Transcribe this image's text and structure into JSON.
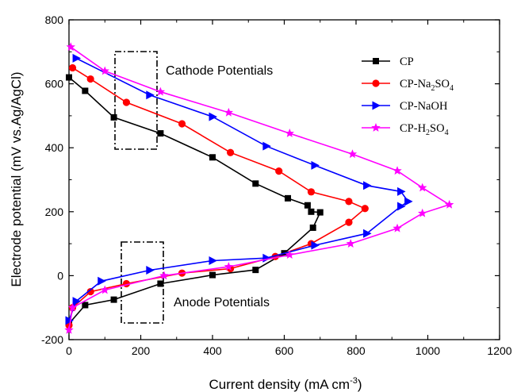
{
  "chart_data": {
    "type": "line",
    "xlabel": "Current density (mA cm",
    "xlabel_sup": "-3",
    "xlabel_end": ")",
    "ylabel": "Electrode potential (mV vs.Ag/AgCl)",
    "xlim": [
      0,
      1200
    ],
    "ylim": [
      -200,
      800
    ],
    "x_ticks": [
      "0",
      "200",
      "400",
      "600",
      "800",
      "1000",
      "1200"
    ],
    "y_ticks": [
      "-200",
      "0",
      "200",
      "400",
      "600",
      "800"
    ],
    "annotations": [
      "Cathode Potentials",
      "Anode Potentials"
    ],
    "legend_position": "top-right",
    "series": [
      {
        "name": "CP",
        "color": "#000000",
        "marker": "square",
        "x": [
          0,
          45,
          125,
          255,
          400,
          520,
          610,
          665,
          675,
          700,
          680,
          600,
          520,
          400,
          255,
          125,
          45,
          0
        ],
        "y": [
          620,
          578,
          495,
          445,
          370,
          288,
          242,
          220,
          200,
          198,
          150,
          70,
          18,
          2,
          -25,
          -75,
          -92,
          -150
        ]
      },
      {
        "name": "CP-Na",
        "name_sub": "2",
        "name_end": "SO",
        "name_sub2": "4",
        "color": "#ff0000",
        "marker": "circle",
        "x": [
          10,
          60,
          160,
          315,
          450,
          585,
          675,
          780,
          825,
          780,
          675,
          575,
          450,
          315,
          160,
          60,
          10,
          0
        ],
        "y": [
          650,
          615,
          542,
          475,
          385,
          327,
          262,
          232,
          210,
          167,
          100,
          60,
          22,
          8,
          -25,
          -50,
          -100,
          -155
        ]
      },
      {
        "name": "CP-NaOH",
        "color": "#0000ff",
        "marker": "triangle-right",
        "x": [
          20,
          225,
          400,
          550,
          685,
          830,
          925,
          945,
          925,
          830,
          685,
          550,
          400,
          225,
          90,
          20,
          0
        ],
        "y": [
          680,
          565,
          497,
          405,
          345,
          282,
          263,
          232,
          217,
          132,
          95,
          55,
          47,
          17,
          -17,
          -80,
          -140
        ]
      },
      {
        "name": "CP-H",
        "name_sub": "2",
        "name_end": "SO",
        "name_sub2": "4",
        "color": "#ff00ff",
        "marker": "star",
        "x": [
          5,
          100,
          255,
          445,
          615,
          790,
          915,
          985,
          1060,
          985,
          915,
          785,
          615,
          445,
          265,
          100,
          10,
          0
        ],
        "y": [
          715,
          640,
          575,
          510,
          445,
          380,
          328,
          275,
          222,
          195,
          148,
          100,
          65,
          28,
          0,
          -45,
          -100,
          -170
        ]
      }
    ]
  }
}
